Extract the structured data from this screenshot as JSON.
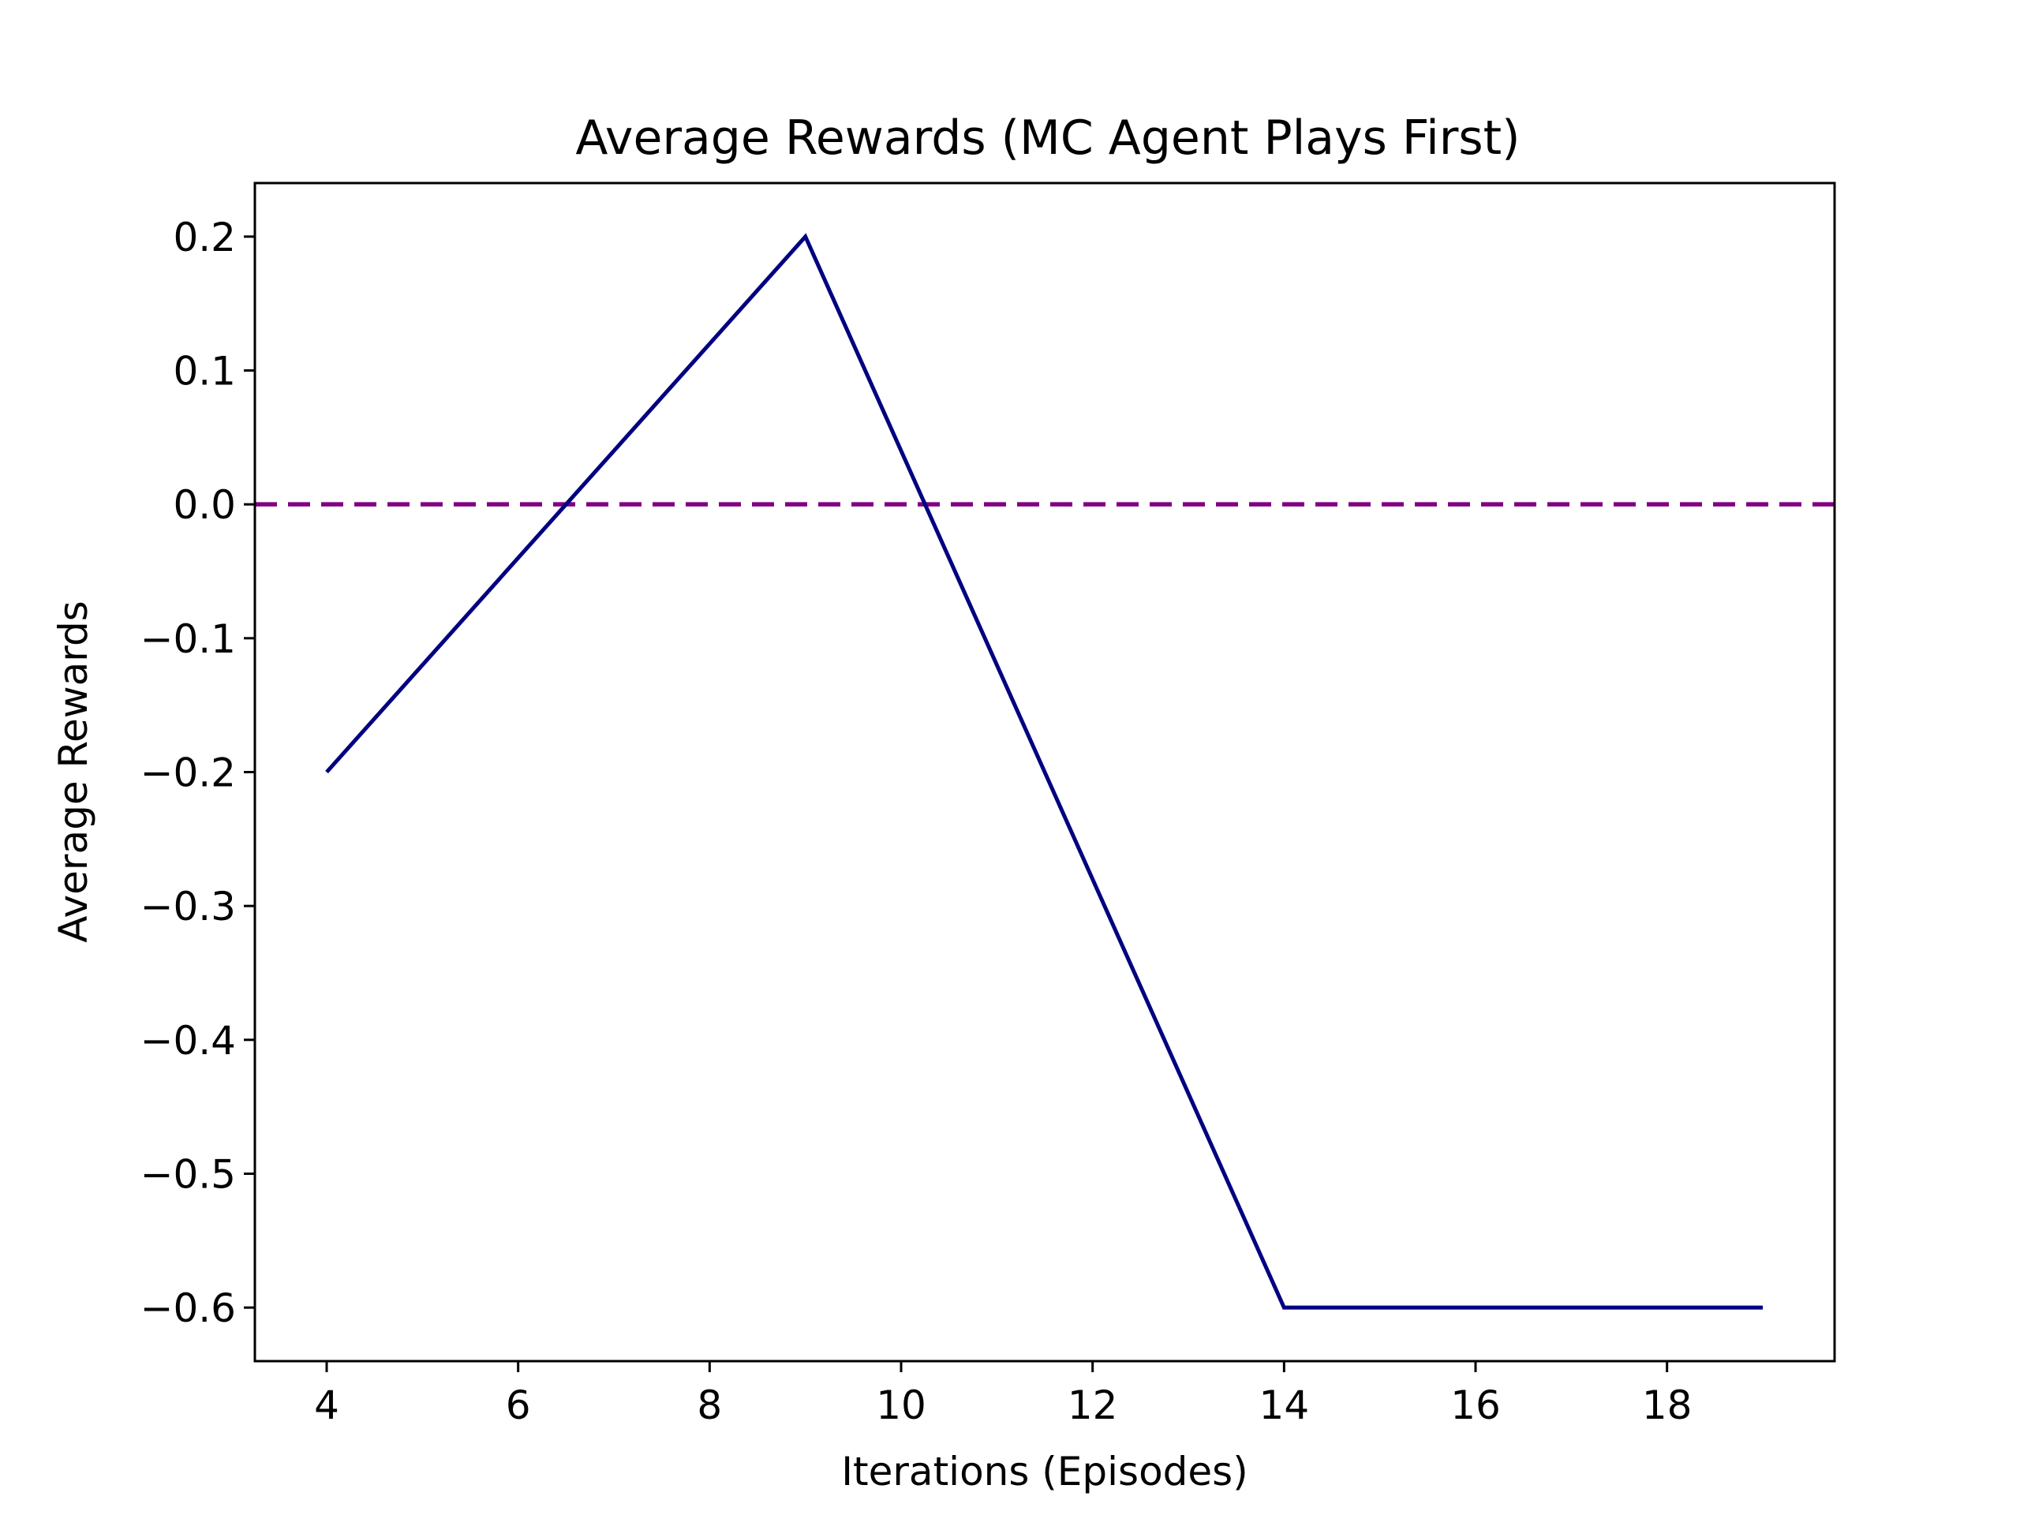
{
  "chart_data": {
    "type": "line",
    "title": "Average Rewards (MC Agent Plays First)",
    "xlabel": "Iterations (Episodes)",
    "ylabel": "Average Rewards",
    "xlim": [
      3.25,
      19.75
    ],
    "ylim": [
      -0.64,
      0.24
    ],
    "x_ticks": [
      4,
      6,
      8,
      10,
      12,
      14,
      16,
      18
    ],
    "x_tick_labels": [
      "4",
      "6",
      "8",
      "10",
      "12",
      "14",
      "16",
      "18"
    ],
    "y_ticks": [
      0.2,
      0.1,
      0.0,
      -0.1,
      -0.2,
      -0.3,
      -0.4,
      -0.5,
      -0.6
    ],
    "y_tick_labels": [
      "0.2",
      "0.1",
      "0.0",
      "−0.1",
      "−0.2",
      "−0.3",
      "−0.4",
      "−0.5",
      "−0.6"
    ],
    "grid": false,
    "series": [
      {
        "x": [
          4,
          9,
          14,
          19
        ],
        "values": [
          -0.2,
          0.2,
          -0.6,
          -0.6
        ],
        "color": "#000080",
        "style": "solid"
      }
    ],
    "reference_lines": [
      {
        "y": 0.0,
        "color": "#800080",
        "style": "dashed"
      }
    ]
  }
}
